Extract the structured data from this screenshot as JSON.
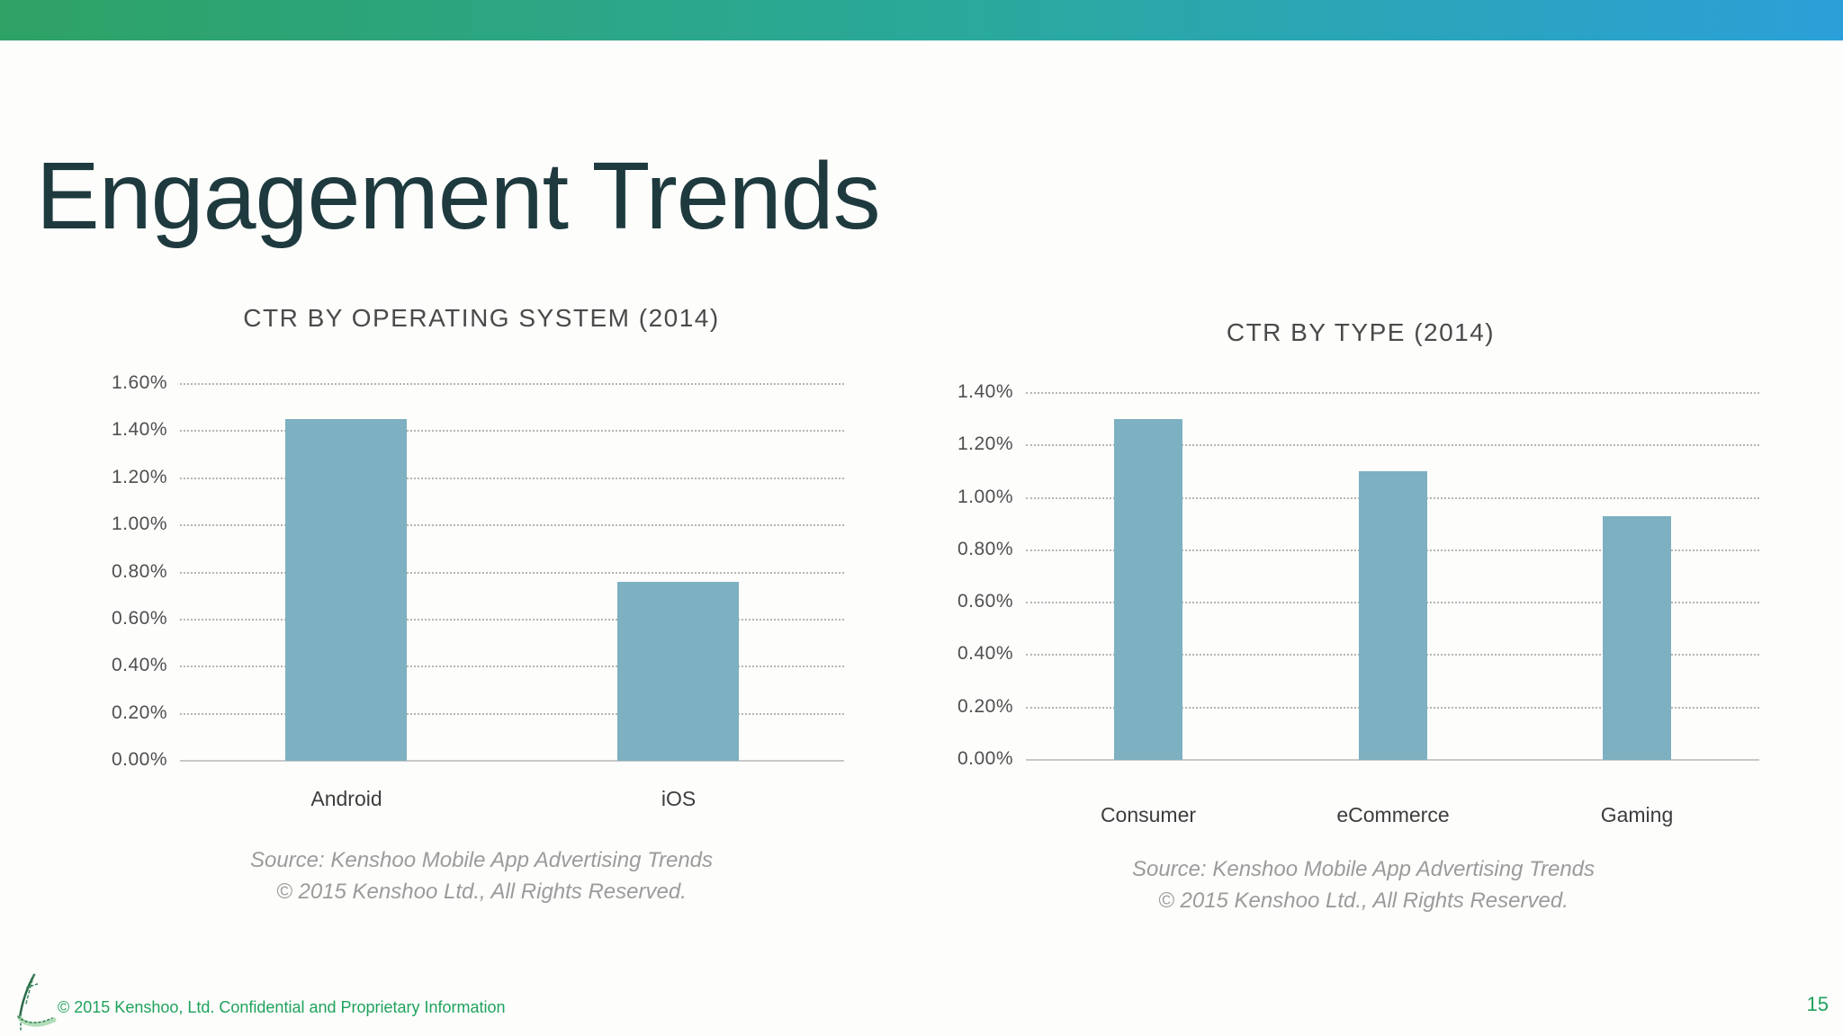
{
  "slide": {
    "title": "Engagement Trends",
    "footer_text": "© 2015 Kenshoo, Ltd. Confidential and Proprietary Information",
    "page_number": "15"
  },
  "colors": {
    "accent_green": "#1FA25C",
    "bar_fill": "#7DB0C0",
    "title_text": "#1E3A3E",
    "topbar_gradient_left": "#2EA265",
    "topbar_gradient_mid": "#2AA99B",
    "topbar_gradient_right": "#2BA0D8"
  },
  "chart_data": [
    {
      "type": "bar",
      "title": "CTR BY OPERATING SYSTEM (2014)",
      "categories": [
        "Android",
        "iOS"
      ],
      "values": [
        1.45,
        0.76
      ],
      "unit": "%",
      "xlabel": "",
      "ylabel": "",
      "ylim": [
        0,
        1.6
      ],
      "ytick_step": 0.2,
      "yticks": [
        "1.60%",
        "1.40%",
        "1.20%",
        "1.00%",
        "0.80%",
        "0.60%",
        "0.40%",
        "0.20%",
        "0.00%"
      ],
      "grid": "horizontal-dotted",
      "legend": "none",
      "source_line1": "Source: Kenshoo Mobile App Advertising Trends",
      "source_line2": "© 2015 Kenshoo Ltd., All Rights Reserved."
    },
    {
      "type": "bar",
      "title": "CTR BY TYPE (2014)",
      "categories": [
        "Consumer",
        "eCommerce",
        "Gaming"
      ],
      "values": [
        1.3,
        1.1,
        0.93
      ],
      "unit": "%",
      "xlabel": "",
      "ylabel": "",
      "ylim": [
        0,
        1.4
      ],
      "ytick_step": 0.2,
      "yticks": [
        "1.40%",
        "1.20%",
        "1.00%",
        "0.80%",
        "0.60%",
        "0.40%",
        "0.20%",
        "0.00%"
      ],
      "grid": "horizontal-dotted",
      "legend": "none",
      "source_line1": "Source: Kenshoo Mobile App Advertising Trends",
      "source_line2": "© 2015 Kenshoo Ltd., All Rights Reserved."
    }
  ]
}
